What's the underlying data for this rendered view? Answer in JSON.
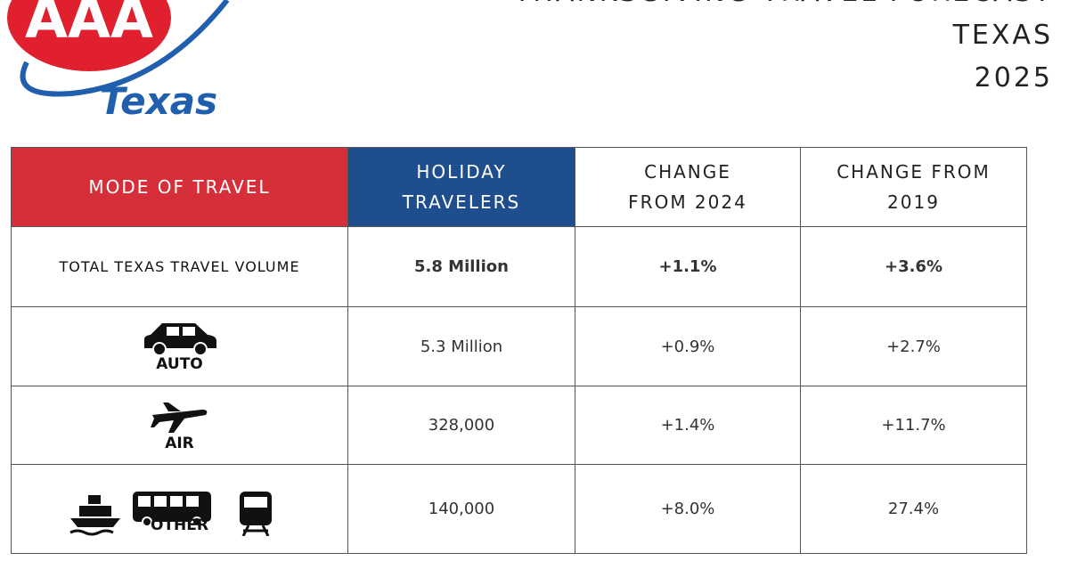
{
  "logo": {
    "mark": "AAA",
    "region": "Texas"
  },
  "header": {
    "title_lines": [
      "THANKSGIVING TRAVEL FORECAST",
      "TEXAS",
      "2025"
    ]
  },
  "table": {
    "columns": [
      "MODE OF TRAVEL",
      "HOLIDAY TRAVELERS",
      "CHANGE FROM 2024",
      "CHANGE FROM 2019"
    ],
    "rows": [
      [
        "TOTAL TEXAS TRAVEL VOLUME",
        "5.8 Million",
        "+1.1%",
        "+3.6%"
      ],
      [
        "AUTO",
        "5.3 Million",
        "+0.9%",
        "+2.7%"
      ],
      [
        "AIR",
        "328,000",
        "+1.4%",
        "+11.7%"
      ],
      [
        "OTHER",
        "140,000",
        "+8.0%",
        "27.4%"
      ]
    ]
  }
}
